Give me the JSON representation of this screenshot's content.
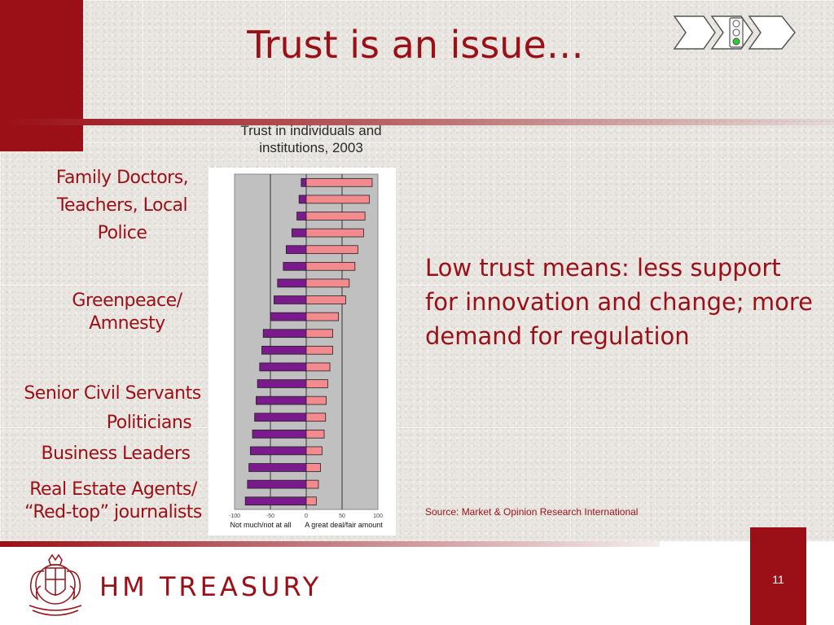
{
  "title": "Trust is an issue…",
  "labels": {
    "family_doctors": [
      "Family Doctors,",
      "Teachers, Local",
      "Police"
    ],
    "greenpeace": [
      "Greenpeace/",
      "Amnesty"
    ],
    "civil_servants": [
      "Senior Civil Servants"
    ],
    "politicians": [
      "Politicians"
    ],
    "business_leaders": [
      "Business Leaders"
    ],
    "real_estate": [
      "Real Estate Agents/",
      "“Red-top” journalists"
    ]
  },
  "main_text": "Low trust means: less support for innovation and change; more demand for regulation",
  "source": "Source: Market & Opinion Research International",
  "page_number": "11",
  "brand": "HM TREASURY",
  "colors": {
    "accent": "#9b0f16",
    "positive_bar": "#f28a8f",
    "negative_bar": "#7a1a8c",
    "plot_bg": "#c0c0c0"
  },
  "chart_data": {
    "type": "bar",
    "orientation": "horizontal",
    "title": "Trust in individuals and institutions, 2003",
    "xlim": [
      -100,
      100
    ],
    "xticks": [
      "-100",
      "-50",
      "0",
      "50",
      "100"
    ],
    "xlabel_left": "Not much/not at all",
    "xlabel_right": "A great deal/fair amount",
    "series": [
      {
        "values": [
          -7,
          -10,
          -13,
          -20,
          -28,
          -32,
          -40,
          -45,
          -50,
          -60,
          -62,
          -65,
          -68,
          -70,
          -72,
          -75,
          -78,
          -80,
          -82,
          -85
        ]
      },
      {
        "values": [
          92,
          88,
          82,
          80,
          72,
          68,
          60,
          55,
          45,
          37,
          37,
          33,
          30,
          28,
          27,
          25,
          22,
          20,
          17,
          14
        ]
      }
    ]
  }
}
